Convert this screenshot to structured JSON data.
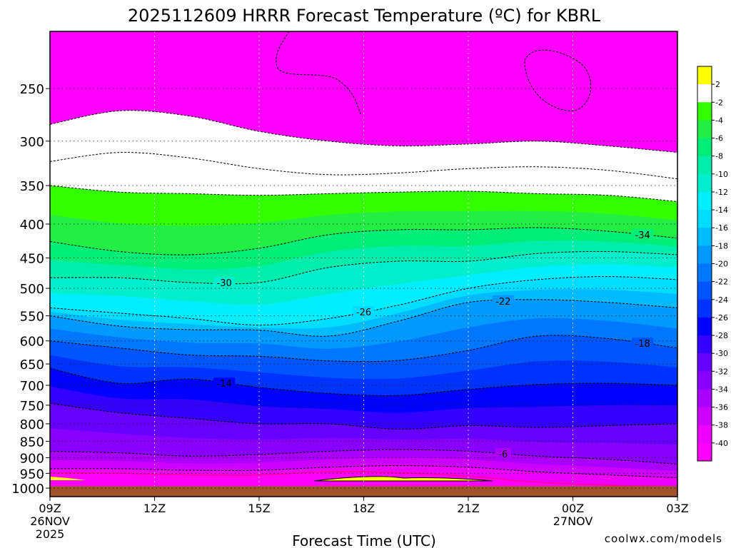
{
  "chart_data": {
    "type": "heatmap",
    "title": "2025112609 HRRR Forecast Temperature (ºC) for KBRL",
    "xlabel": "Forecast Time (UTC)",
    "ylabel": "",
    "credit": "coolwx.com/models",
    "x_ticks": [
      {
        "hour": 0,
        "label": "09Z",
        "sub1": "26NOV",
        "sub2": "2025"
      },
      {
        "hour": 3,
        "label": "12Z",
        "sub1": "",
        "sub2": ""
      },
      {
        "hour": 6,
        "label": "15Z",
        "sub1": "",
        "sub2": ""
      },
      {
        "hour": 9,
        "label": "18Z",
        "sub1": "",
        "sub2": ""
      },
      {
        "hour": 12,
        "label": "21Z",
        "sub1": "",
        "sub2": ""
      },
      {
        "hour": 15,
        "label": "00Z",
        "sub1": "27NOV",
        "sub2": ""
      },
      {
        "hour": 18,
        "label": "03Z",
        "sub1": "",
        "sub2": ""
      }
    ],
    "xlim_hours": [
      0,
      18
    ],
    "y_axis": "pressure (hPa), log scale, decreasing upward",
    "ylim": [
      1030,
      205
    ],
    "y_ticks": [
      250,
      300,
      350,
      400,
      450,
      500,
      550,
      600,
      650,
      700,
      750,
      800,
      850,
      900,
      950,
      1000
    ],
    "surface_pressure": 993,
    "colorbar": {
      "labels": [
        "2",
        "-2",
        "-4",
        "-6",
        "-8",
        "-10",
        "-12",
        "-14",
        "-16",
        "-18",
        "-20",
        "-22",
        "-24",
        "-26",
        "-28",
        "-30",
        "-32",
        "-34",
        "-36",
        "-38",
        "-40"
      ],
      "colors": [
        "#ffff00",
        "#ffffff",
        "#33ff00",
        "#22ee44",
        "#00ee77",
        "#00eeaa",
        "#00eecc",
        "#00eeff",
        "#00ddff",
        "#00bbff",
        "#0099ff",
        "#0077ff",
        "#0055ff",
        "#0033ff",
        "#0000ff",
        "#3300ff",
        "#6600ff",
        "#8800ff",
        "#aa00ff",
        "#cc00ff",
        "#ee00ff",
        "#ff00ff"
      ]
    },
    "isotherms": [
      {
        "label": "-46",
        "show": false,
        "values": [
          283,
          270,
          275,
          290,
          300,
          305,
          303,
          300,
          305,
          312
        ]
      },
      {
        "label": "-42",
        "show": false,
        "values": [
          322,
          312,
          318,
          330,
          337,
          335,
          330,
          328,
          332,
          342
        ]
      },
      {
        "label": "-38",
        "show": false,
        "values": [
          350,
          358,
          360,
          362,
          360,
          358,
          357,
          360,
          362,
          370
        ]
      },
      {
        "label": "-34",
        "show": true,
        "values": [
          425,
          440,
          445,
          435,
          415,
          408,
          408,
          405,
          410,
          420
        ]
      },
      {
        "label": "-30",
        "show": true,
        "values": [
          482,
          482,
          490,
          490,
          465,
          455,
          455,
          443,
          440,
          445
        ]
      },
      {
        "label": "-26",
        "show": true,
        "values": [
          535,
          545,
          555,
          568,
          555,
          530,
          500,
          485,
          480,
          485
        ]
      },
      {
        "label": "-22",
        "show": true,
        "values": [
          550,
          570,
          577,
          578,
          590,
          560,
          525,
          520,
          525,
          535
        ]
      },
      {
        "label": "-18",
        "show": true,
        "values": [
          600,
          615,
          630,
          633,
          643,
          642,
          620,
          590,
          595,
          615
        ]
      },
      {
        "label": "-14",
        "show": true,
        "values": [
          660,
          695,
          685,
          705,
          720,
          725,
          710,
          698,
          695,
          700
        ]
      },
      {
        "label": "-10",
        "show": false,
        "values": [
          745,
          770,
          785,
          800,
          800,
          815,
          805,
          810,
          805,
          800
        ]
      },
      {
        "label": "-6",
        "show": true,
        "values": [
          880,
          885,
          895,
          890,
          880,
          875,
          880,
          895,
          905,
          920
        ]
      },
      {
        "label": "-2",
        "show": false,
        "values": [
          935,
          935,
          940,
          940,
          930,
          925,
          930,
          945,
          955,
          965
        ]
      }
    ],
    "freezing_line": {
      "label": "0",
      "values": [
        948,
        950,
        955,
        955,
        945,
        948,
        960,
        980,
        990,
        995
      ]
    }
  }
}
